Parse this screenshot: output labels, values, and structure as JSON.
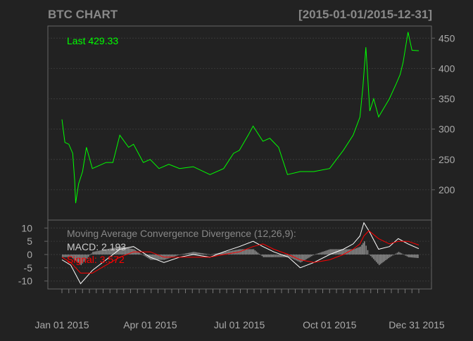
{
  "header": {
    "title": "BTC CHART",
    "range": "[2015-01-01/2015-12-31]"
  },
  "colors": {
    "background": "#222222",
    "panel_border": "#666666",
    "grid": "#444444",
    "axis_text": "#aaaaaa",
    "title": "#888888",
    "price": "#00ff00",
    "macd_hist": "#aaaaaa",
    "macd_line": "#ffffff",
    "signal_line": "#ff0000"
  },
  "chart_data": [
    {
      "type": "line",
      "x": [
        "2015-01-01",
        "2015-01-04",
        "2015-01-08",
        "2015-01-12",
        "2015-01-14",
        "2015-01-15",
        "2015-01-18",
        "2015-01-22",
        "2015-01-26",
        "2015-02-01",
        "2015-02-08",
        "2015-02-15",
        "2015-02-22",
        "2015-03-01",
        "2015-03-10",
        "2015-03-15",
        "2015-03-25",
        "2015-04-01",
        "2015-04-10",
        "2015-04-20",
        "2015-05-01",
        "2015-05-15",
        "2015-06-01",
        "2015-06-15",
        "2015-06-25",
        "2015-07-01",
        "2015-07-10",
        "2015-07-15",
        "2015-07-25",
        "2015-08-01",
        "2015-08-10",
        "2015-08-19",
        "2015-09-01",
        "2015-09-15",
        "2015-10-01",
        "2015-10-15",
        "2015-10-25",
        "2015-11-01",
        "2015-11-04",
        "2015-11-07",
        "2015-11-11",
        "2015-11-15",
        "2015-11-20",
        "2015-12-01",
        "2015-12-08",
        "2015-12-12",
        "2015-12-15",
        "2015-12-20",
        "2015-12-24",
        "2015-12-31"
      ],
      "series": [
        {
          "name": "Last",
          "values": [
            316,
            278,
            275,
            260,
            215,
            178,
            210,
            230,
            270,
            235,
            240,
            245,
            245,
            290,
            270,
            275,
            245,
            250,
            235,
            242,
            235,
            238,
            225,
            235,
            260,
            265,
            290,
            305,
            280,
            285,
            270,
            225,
            230,
            230,
            235,
            265,
            290,
            320,
            370,
            435,
            330,
            350,
            320,
            350,
            375,
            390,
            410,
            460,
            430,
            429.33
          ]
        }
      ],
      "last_label": "Last 429.33",
      "ylim": [
        150,
        470
      ],
      "y_ticks": [
        "200",
        "250",
        "300",
        "350",
        "400",
        "450"
      ]
    },
    {
      "type": "line",
      "title": "Moving Average Convergence Divergence (12,26,9):",
      "macd_label": "MACD: 2.193",
      "signal_label": "Signal: 3.572",
      "x": [
        "2015-01-01",
        "2015-01-10",
        "2015-01-20",
        "2015-02-01",
        "2015-02-15",
        "2015-03-01",
        "2015-03-15",
        "2015-04-01",
        "2015-04-15",
        "2015-05-01",
        "2015-05-15",
        "2015-06-01",
        "2015-06-15",
        "2015-07-01",
        "2015-07-15",
        "2015-07-25",
        "2015-08-05",
        "2015-08-20",
        "2015-09-01",
        "2015-09-15",
        "2015-10-01",
        "2015-10-15",
        "2015-10-25",
        "2015-11-01",
        "2015-11-05",
        "2015-11-10",
        "2015-11-20",
        "2015-12-01",
        "2015-12-10",
        "2015-12-20",
        "2015-12-31"
      ],
      "series": [
        {
          "name": "MACD",
          "values": [
            -2,
            -4,
            -11,
            -6,
            -2,
            2,
            3,
            -1,
            -3,
            -1,
            0,
            -1,
            1,
            3,
            5,
            3,
            1,
            -1,
            -5,
            -3,
            0,
            2,
            4,
            7,
            12,
            9,
            2,
            3,
            6,
            4,
            2.193
          ]
        },
        {
          "name": "Signal",
          "values": [
            -1,
            -3,
            -7,
            -7,
            -4,
            -1,
            1,
            1,
            -1,
            -1,
            -1,
            -1,
            0,
            1,
            3,
            4,
            2,
            0,
            -2,
            -3,
            -2,
            0,
            2,
            4,
            7,
            9,
            6,
            4,
            5,
            5,
            3.572
          ]
        }
      ],
      "ylim": [
        -13,
        13
      ],
      "y_ticks": [
        "10",
        "5",
        "0",
        "-5",
        "-10"
      ]
    }
  ],
  "x_axis": {
    "labels": [
      "Jan 01 2015",
      "Apr 01 2015",
      "Jul 01 2015",
      "Oct 01 2015",
      "Dec 31 2015"
    ]
  }
}
